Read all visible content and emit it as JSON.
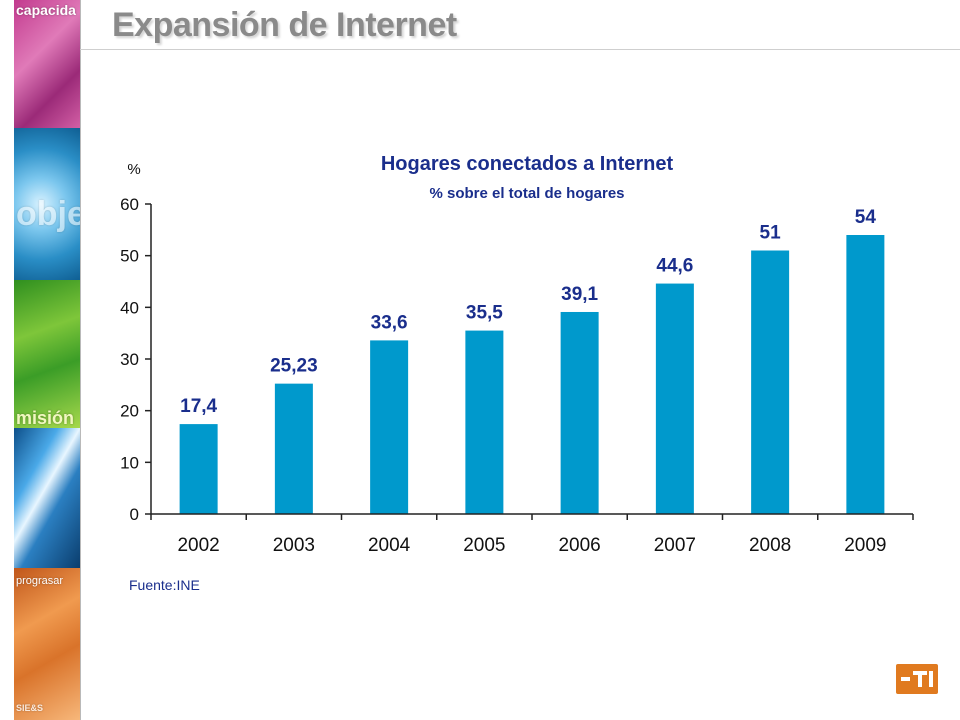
{
  "slide": {
    "title": "Expansión de Internet",
    "side_words": [
      "capacida",
      "obje",
      "misión",
      "prograsar",
      "SIE&S"
    ]
  },
  "colors": {
    "bar": "#0099cc",
    "title_text": "#1a2e8c",
    "axis": "#222222"
  },
  "chart_data": {
    "type": "bar",
    "title": "Hogares conectados a Internet",
    "subtitle": "% sobre el total de hogares",
    "ylabel": "%",
    "xlabel": "",
    "categories": [
      "2002",
      "2003",
      "2004",
      "2005",
      "2006",
      "2007",
      "2008",
      "2009"
    ],
    "values": [
      17.4,
      25.23,
      33.6,
      35.5,
      39.1,
      44.6,
      51,
      54
    ],
    "data_labels": [
      "17,4",
      "25,23",
      "33,6",
      "35,5",
      "39,1",
      "44,6",
      "51",
      "54"
    ],
    "ylim": [
      0,
      60
    ],
    "yticks": [
      0,
      10,
      20,
      30,
      40,
      50,
      60
    ],
    "grid": false,
    "legend": "none",
    "source": "Fuente:INE"
  }
}
